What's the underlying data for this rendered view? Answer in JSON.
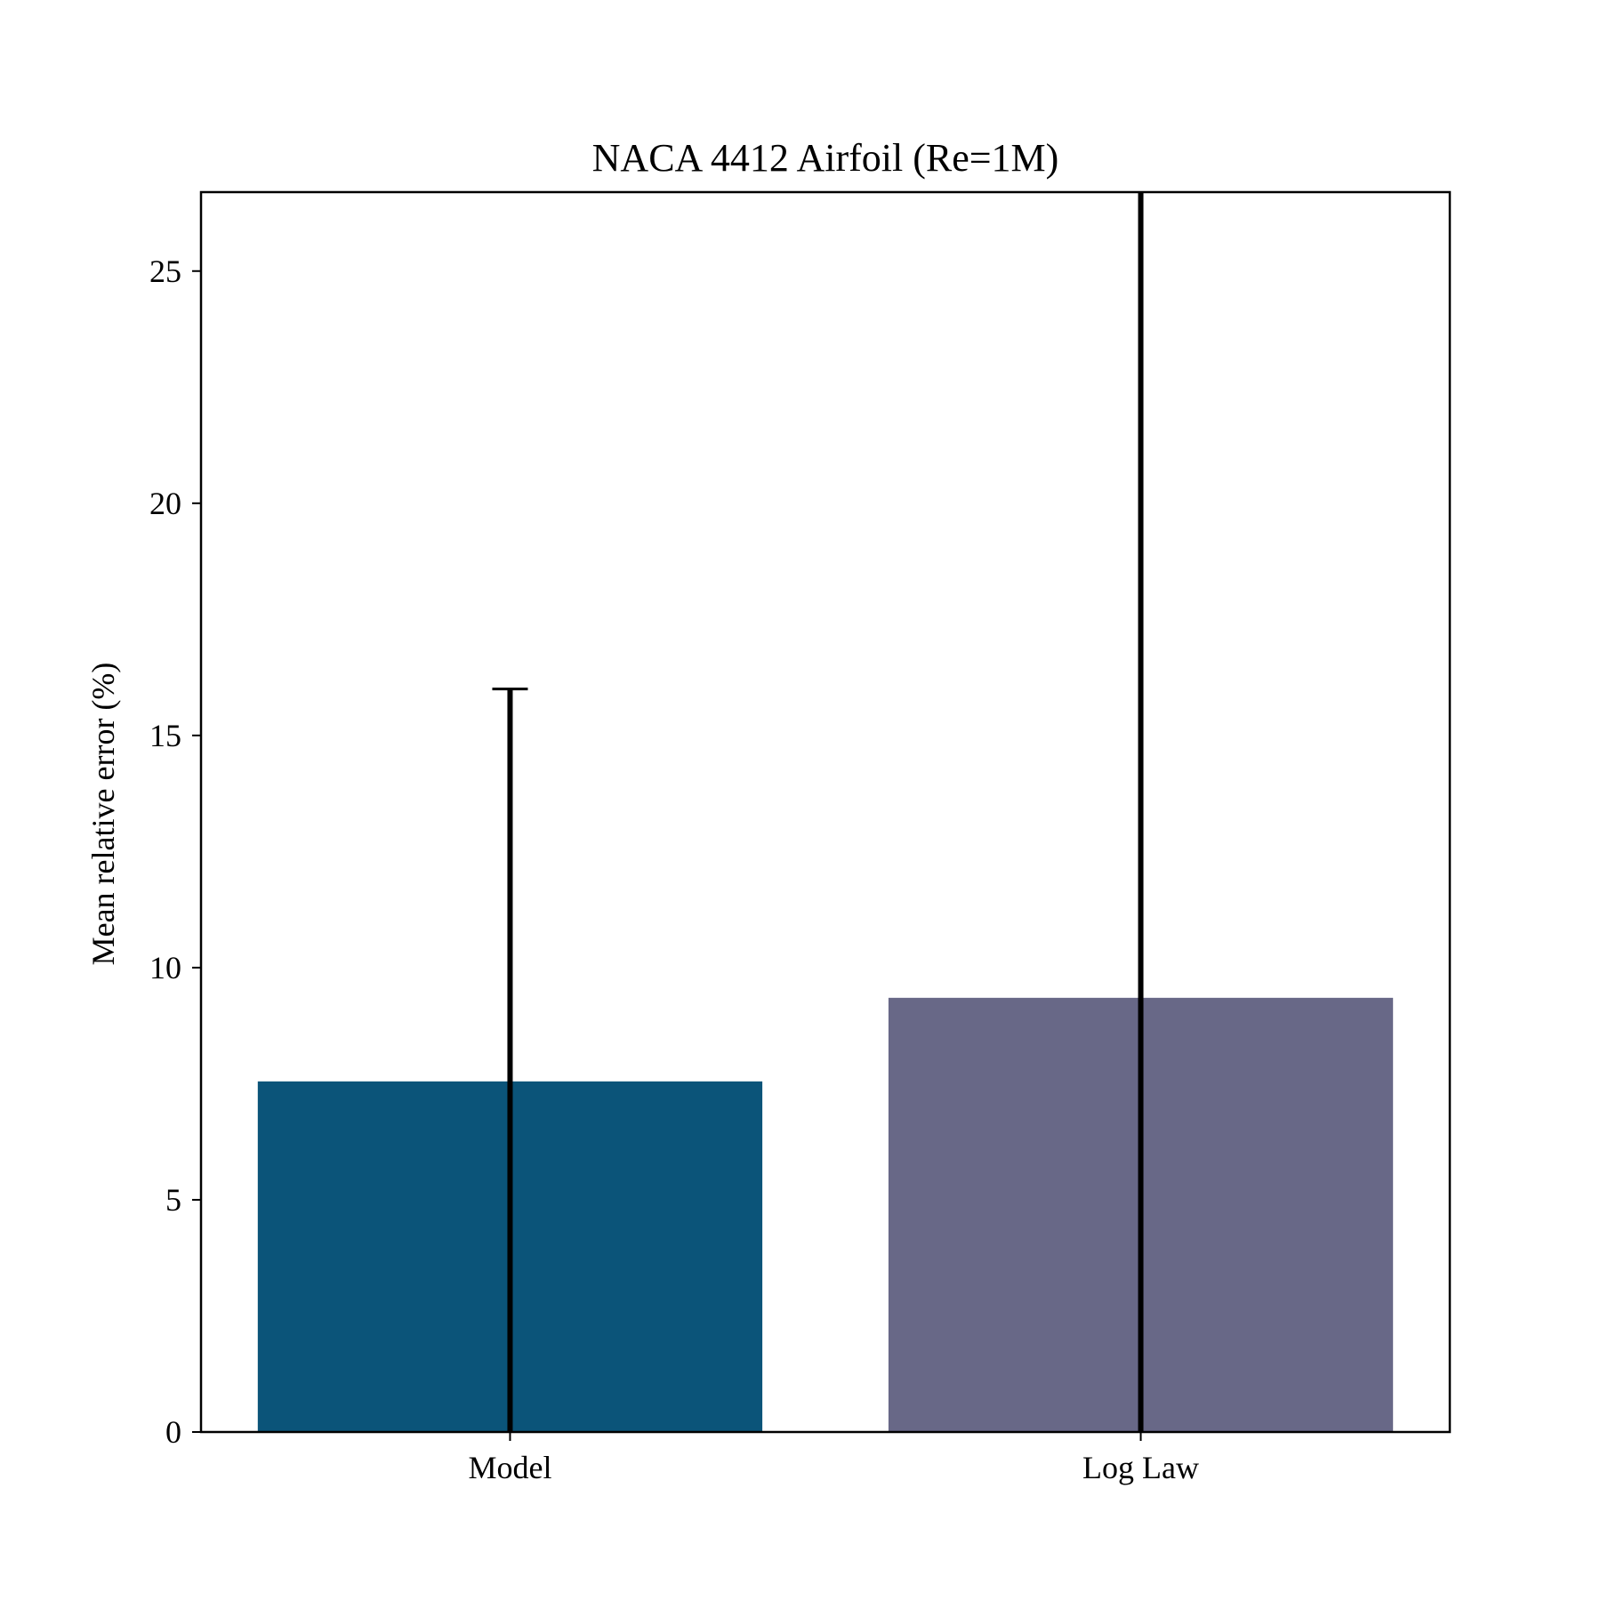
{
  "chart_data": {
    "type": "bar",
    "title": "NACA 4412 Airfoil (Re=1M)",
    "xlabel": "",
    "ylabel": "Mean relative error (%)",
    "categories": [
      "Model",
      "Log Law"
    ],
    "values": [
      7.55,
      9.35
    ],
    "error_upper": [
      8.45,
      17.5
    ],
    "error_lower": [
      7.55,
      9.35
    ],
    "bar_colors": [
      "#0b5479",
      "#686887"
    ],
    "ylim": [
      0,
      26.7
    ],
    "yticks": [
      0,
      5,
      10,
      15,
      20,
      25
    ],
    "grid": false,
    "legend": "none"
  }
}
